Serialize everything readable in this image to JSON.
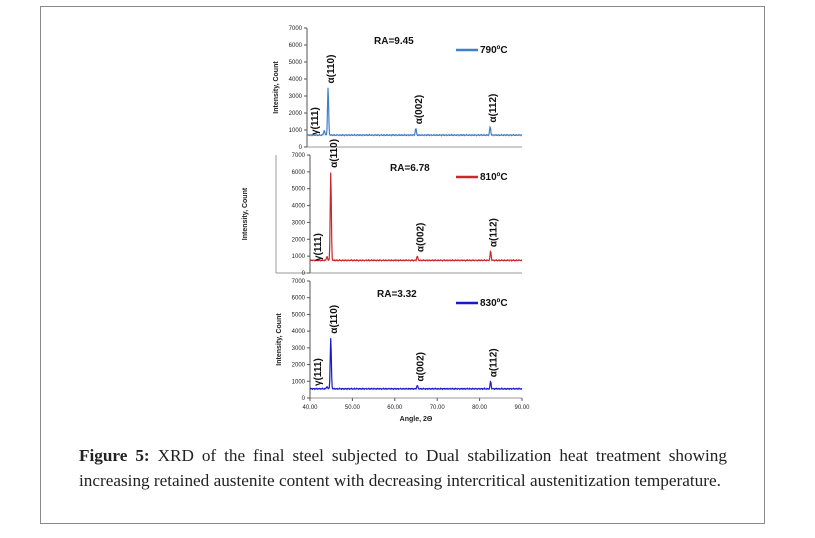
{
  "caption": {
    "label": "Figure 5:",
    "text": "XRD of the final steel subjected to Dual stabilization heat treatment showing increasing retained austenite content with decreasing intercritical austenitization temperature."
  },
  "chart_data": [
    {
      "type": "line",
      "temperature": "790ºC",
      "color": "#3f80c7",
      "ra_label": "RA=9.45",
      "ylabel": "Intensity, Count",
      "ylim": [
        0,
        7000
      ],
      "y_ticks": [
        0,
        1000,
        2000,
        3000,
        4000,
        5000,
        6000,
        7000
      ],
      "xlim": [
        40,
        90
      ],
      "baseline": 700,
      "peaks": [
        {
          "label": "γ(111)",
          "x": 44.0,
          "y": 1000
        },
        {
          "label": "α(110)",
          "x": 44.9,
          "y": 3500
        },
        {
          "label": "α(002)",
          "x": 65.3,
          "y": 1100
        },
        {
          "label": "α(112)",
          "x": 82.6,
          "y": 1200
        }
      ]
    },
    {
      "type": "line",
      "temperature": "810ºC",
      "color": "#c9282b",
      "ra_label": "RA=6.78",
      "ylabel": "Intensity, Count",
      "ylim": [
        0,
        7000
      ],
      "y_ticks": [
        0,
        1000,
        2000,
        3000,
        4000,
        5000,
        6000,
        7000
      ],
      "xlim": [
        40,
        90
      ],
      "baseline": 750,
      "peaks": [
        {
          "label": "γ(111)",
          "x": 44.0,
          "y": 1000
        },
        {
          "label": "α(110)",
          "x": 44.9,
          "y": 6000
        },
        {
          "label": "α(002)",
          "x": 65.3,
          "y": 1000
        },
        {
          "label": "α(112)",
          "x": 82.6,
          "y": 1300
        }
      ]
    },
    {
      "type": "line",
      "temperature": "830ºC",
      "color": "#1919c8",
      "ra_label": "RA=3.32",
      "ylabel": "Intensity, Count",
      "xlabel": "Angle, 2Θ",
      "ylim": [
        0,
        7000
      ],
      "y_ticks": [
        0,
        1000,
        2000,
        3000,
        4000,
        5000,
        6000,
        7000
      ],
      "xlim": [
        40,
        90
      ],
      "x_ticks": [
        "40.00",
        "50.00",
        "60.00",
        "70.00",
        "80.00",
        "90.00"
      ],
      "baseline": 550,
      "peaks": [
        {
          "label": "γ(111)",
          "x": 44.0,
          "y": 700
        },
        {
          "label": "α(110)",
          "x": 44.9,
          "y": 3600
        },
        {
          "label": "α(002)",
          "x": 65.3,
          "y": 750
        },
        {
          "label": "α(112)",
          "x": 82.6,
          "y": 1000
        }
      ]
    }
  ]
}
